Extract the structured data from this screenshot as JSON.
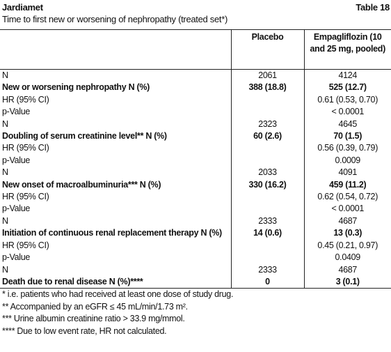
{
  "header": {
    "title": "Jardiamet",
    "table_label": "Table 18",
    "subtitle": "Time to first new or worsening of nephropathy (treated set*)"
  },
  "table": {
    "columns": [
      "Placebo",
      "Empagliflozin (10 and 25 mg, pooled)"
    ],
    "rows": [
      {
        "cells": [
          "N",
          "2061",
          "4124"
        ],
        "bold": false
      },
      {
        "cells": [
          "New or worsening nephropathy N (%)",
          "388 (18.8)",
          "525 (12.7)"
        ],
        "bold": true
      },
      {
        "cells": [
          "HR (95% CI)",
          null,
          "0.61 (0.53, 0.70)"
        ],
        "bold": false
      },
      {
        "cells": [
          "p-Value",
          null,
          "< 0.0001"
        ],
        "bold": false
      },
      {
        "cells": [
          "N",
          "2323",
          "4645"
        ],
        "bold": false
      },
      {
        "cells": [
          "Doubling of serum creatinine level** N (%)",
          "60 (2.6)",
          "70 (1.5)"
        ],
        "bold": true
      },
      {
        "cells": [
          "HR (95% CI)",
          null,
          "0.56 (0.39, 0.79)"
        ],
        "bold": false
      },
      {
        "cells": [
          "p-Value",
          null,
          "0.0009"
        ],
        "bold": false
      },
      {
        "cells": [
          "N",
          "2033",
          "4091"
        ],
        "bold": false
      },
      {
        "cells": [
          "New onset of macroalbuminuria*** N (%)",
          "330 (16.2)",
          "459 (11.2)"
        ],
        "bold": true
      },
      {
        "cells": [
          "HR (95% CI)",
          null,
          "0.62 (0.54, 0.72)"
        ],
        "bold": false
      },
      {
        "cells": [
          "p-Value",
          null,
          "< 0.0001"
        ],
        "bold": false
      },
      {
        "cells": [
          "N",
          "2333",
          "4687"
        ],
        "bold": false
      },
      {
        "cells": [
          "Initiation of continuous renal replacement therapy N (%)",
          "14 (0.6)",
          "13 (0.3)"
        ],
        "bold": true
      },
      {
        "cells": [
          "HR (95% CI)",
          null,
          "0.45 (0.21, 0.97)"
        ],
        "bold": false
      },
      {
        "cells": [
          "p-Value",
          null,
          "0.0409"
        ],
        "bold": false
      },
      {
        "cells": [
          "N",
          "2333",
          "4687"
        ],
        "bold": false
      },
      {
        "cells": [
          "Death due to renal disease N (%)****",
          "0",
          "3 (0.1)"
        ],
        "bold": true
      }
    ]
  },
  "footnotes": [
    "* i.e. patients who had received at least one dose of study drug.",
    "** Accompanied by an eGFR ≤ 45 mL/min/1.73 m².",
    "*** Urine albumin creatinine ratio > 33.9 mg/mmol.",
    "**** Due to low event rate, HR not calculated."
  ]
}
